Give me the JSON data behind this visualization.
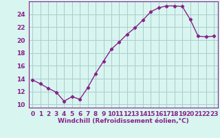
{
  "hours": [
    0,
    1,
    2,
    3,
    4,
    5,
    6,
    7,
    8,
    9,
    10,
    11,
    12,
    13,
    14,
    15,
    16,
    17,
    18,
    19,
    20,
    21,
    22,
    23
  ],
  "values": [
    13.8,
    13.2,
    12.5,
    11.9,
    10.5,
    11.2,
    10.8,
    12.6,
    14.8,
    16.7,
    18.6,
    19.7,
    20.9,
    21.9,
    23.1,
    24.4,
    25.0,
    25.3,
    25.3,
    25.2,
    23.2,
    20.6,
    20.5,
    20.6
  ],
  "line_color": "#882288",
  "marker": "D",
  "marker_size": 2.2,
  "background_color": "#d8f5f0",
  "grid_color": "#aacccc",
  "ylabel_ticks": [
    10,
    12,
    14,
    16,
    18,
    20,
    22,
    24
  ],
  "ylim": [
    9.5,
    26.0
  ],
  "xlim": [
    -0.5,
    23.5
  ],
  "xlabel": "Windchill (Refroidissement éolien,°C)",
  "xlabel_fontsize": 6.5,
  "tick_fontsize": 6.5,
  "line_width": 1.0
}
